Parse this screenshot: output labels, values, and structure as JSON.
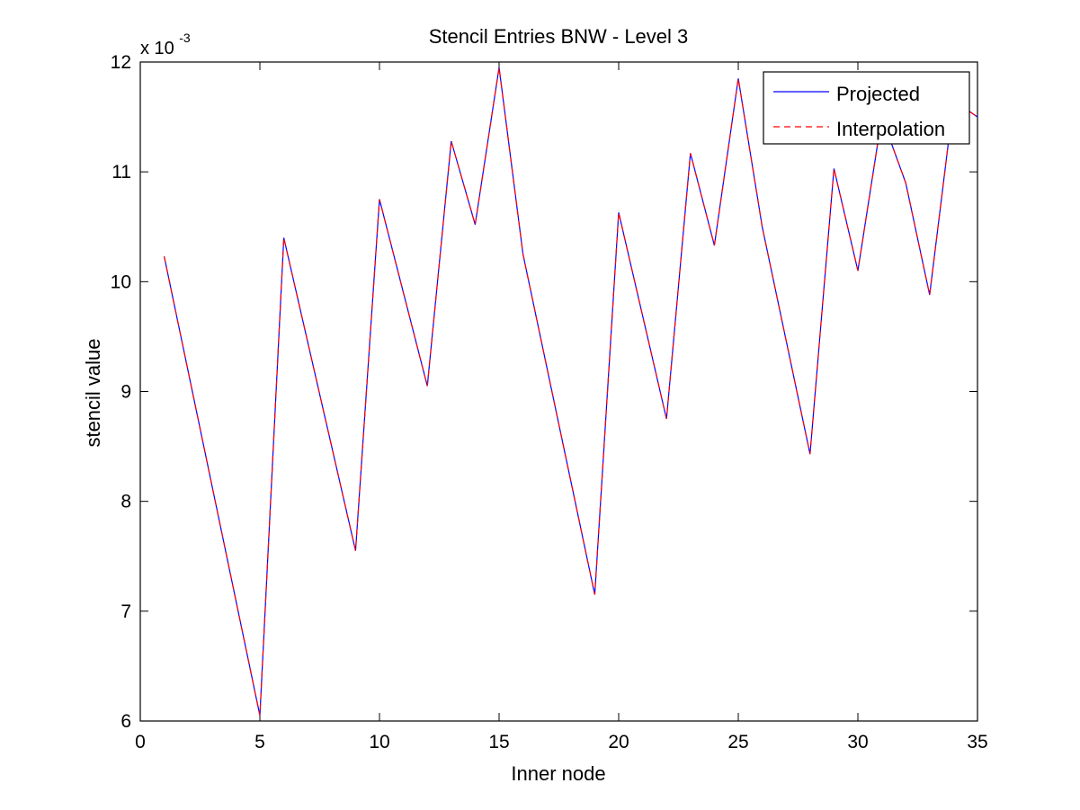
{
  "chart_data": {
    "type": "line",
    "title": "Stencil Entries BNW - Level 3",
    "xlabel": "Inner node",
    "ylabel": "stencil value",
    "y_multiplier": {
      "base": "x 10",
      "exponent": "-3"
    },
    "xlim": [
      0,
      35
    ],
    "ylim": [
      6,
      12
    ],
    "x_ticks": [
      0,
      5,
      10,
      15,
      20,
      25,
      30,
      35
    ],
    "y_ticks": [
      6,
      7,
      8,
      9,
      10,
      11,
      12
    ],
    "x_tick_labels": [
      "0",
      "5",
      "10",
      "15",
      "20",
      "25",
      "30",
      "35"
    ],
    "y_tick_labels": [
      "6",
      "7",
      "8",
      "9",
      "10",
      "11",
      "12"
    ],
    "legend_position": "top-right",
    "x": [
      1,
      5,
      6,
      9,
      10,
      12,
      13,
      14,
      15,
      16,
      19,
      20,
      22,
      23,
      24,
      25,
      26,
      28,
      29,
      30,
      31,
      32,
      33,
      34,
      35
    ],
    "series": [
      {
        "name": "Projected",
        "color": "#0000ff",
        "style": "solid",
        "values": [
          10.23,
          6.05,
          10.4,
          7.55,
          10.75,
          9.05,
          11.28,
          10.52,
          11.95,
          10.25,
          7.15,
          10.63,
          8.75,
          11.17,
          10.33,
          11.85,
          10.5,
          8.43,
          11.03,
          10.1,
          11.5,
          10.9,
          9.88,
          11.65,
          11.5
        ]
      },
      {
        "name": "Interpolation",
        "color": "#ff0000",
        "style": "dashed",
        "values": [
          10.23,
          6.05,
          10.4,
          7.55,
          10.75,
          9.05,
          11.28,
          10.52,
          11.95,
          10.25,
          7.15,
          10.63,
          8.75,
          11.17,
          10.33,
          11.85,
          10.5,
          8.43,
          11.03,
          10.1,
          11.5,
          10.9,
          9.88,
          11.65,
          11.5
        ]
      }
    ]
  }
}
